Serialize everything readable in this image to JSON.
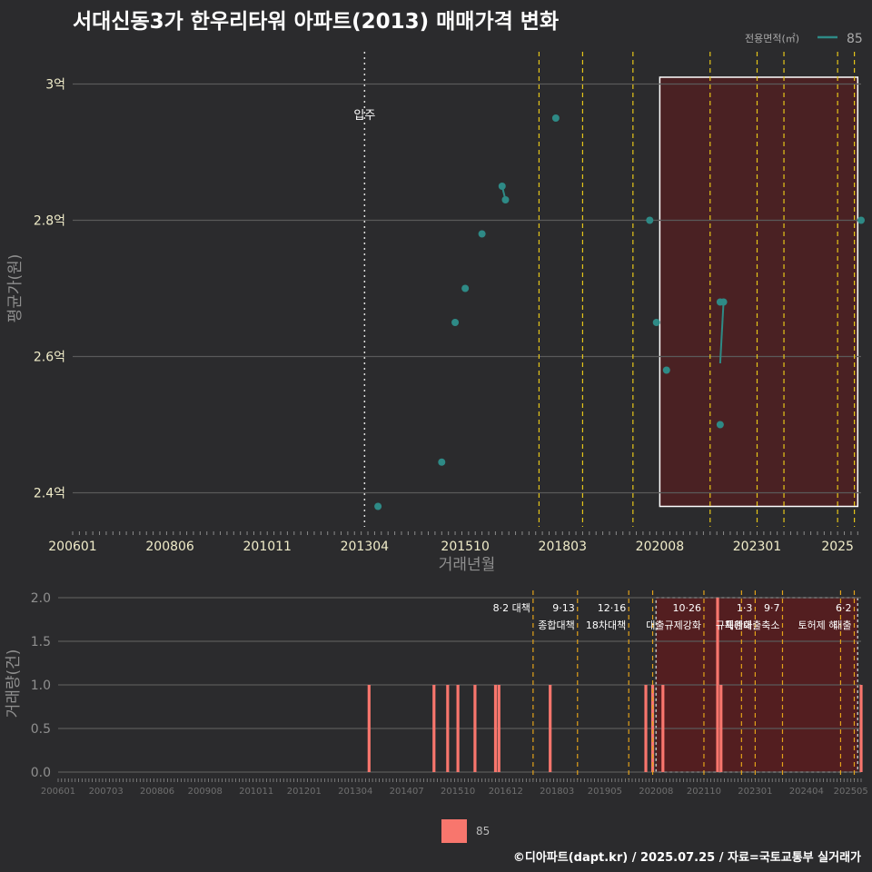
{
  "title": "서대신동3가 한우리타워 아파트(2013) 매매가격 변화",
  "footer": "©디아파트(dapt.kr) / 2025.07.25 / 자료=국토교통부 실거래가",
  "legend_top": {
    "title": "전용면적(㎡)",
    "label": "85"
  },
  "legend_bottom": {
    "label": "85"
  },
  "colors": {
    "series": "#2e8a86",
    "bar": "#f8766d",
    "policy": "#e6c619",
    "policy_bottom": "#e3a21a",
    "highlight": "#5a1c1f"
  },
  "chart_data": [
    {
      "type": "scatter",
      "title": "서대신동3가 한우리타워 아파트(2013) 매매가격 변화",
      "xlabel": "거래년월",
      "ylabel": "평균가(원)",
      "x_ticks": [
        "200601",
        "200806",
        "201011",
        "201304",
        "201510",
        "201803",
        "202008",
        "202301",
        "2025"
      ],
      "y_ticks": [
        {
          "v": 2.4,
          "label": "2.4억"
        },
        {
          "v": 2.6,
          "label": "2.6억"
        },
        {
          "v": 2.8,
          "label": "2.8억"
        },
        {
          "v": 3.0,
          "label": "3억"
        }
      ],
      "ylim": [
        2.35,
        3.05
      ],
      "xlim": [
        "2006-01",
        "2025-08"
      ],
      "annotation": {
        "x": "2013-04",
        "label": "입주"
      },
      "policy_lines": [
        "2017-08",
        "2018-09",
        "2019-12",
        "2021-11",
        "2023-01",
        "2023-09",
        "2025-01",
        "2025-06"
      ],
      "highlight_range": [
        "2020-08",
        "2025-07"
      ],
      "series": [
        {
          "name": "85",
          "points": [
            {
              "x": "2013-08",
              "y": 2.38
            },
            {
              "x": "2015-03",
              "y": 2.445
            },
            {
              "x": "2015-07",
              "y": 2.65
            },
            {
              "x": "2015-10",
              "y": 2.7
            },
            {
              "x": "2016-03",
              "y": 2.78
            },
            {
              "x": "2016-09",
              "y": 2.85
            },
            {
              "x": "2016-10",
              "y": 2.83
            },
            {
              "x": "2018-01",
              "y": 2.95
            },
            {
              "x": "2020-05",
              "y": 2.8
            },
            {
              "x": "2020-07",
              "y": 2.65
            },
            {
              "x": "2020-10",
              "y": 2.58
            },
            {
              "x": "2022-02",
              "y": 2.5
            },
            {
              "x": "2022-02",
              "y": 2.68
            },
            {
              "x": "2022-03",
              "y": 2.68
            },
            {
              "x": "2025-08",
              "y": 2.8
            }
          ],
          "line_segments": [
            [
              {
                "x": "2016-09",
                "y": 2.85
              },
              {
                "x": "2016-10",
                "y": 2.83
              }
            ],
            [
              {
                "x": "2022-02",
                "y": 2.59
              },
              {
                "x": "2022-03",
                "y": 2.68
              }
            ]
          ]
        }
      ]
    },
    {
      "type": "bar",
      "xlabel": "",
      "ylabel": "거래량(건)",
      "x_ticks": [
        "200601",
        "200703",
        "200806",
        "200908",
        "201011",
        "201201",
        "201304",
        "201407",
        "201510",
        "201612",
        "201803",
        "201905",
        "202008",
        "202110",
        "202301",
        "202404",
        "202505"
      ],
      "y_ticks": [
        {
          "v": 0,
          "label": "0.0"
        },
        {
          "v": 0.5,
          "label": "0.5"
        },
        {
          "v": 1,
          "label": "1.0"
        },
        {
          "v": 1.5,
          "label": "1.5"
        },
        {
          "v": 2,
          "label": "2.0"
        }
      ],
      "ylim": [
        0,
        2
      ],
      "xlim": [
        "2006-01",
        "2025-08"
      ],
      "highlight_range": [
        "2020-08",
        "2025-07"
      ],
      "policy_lines": [
        {
          "x": "2017-08",
          "label": "8·2 대책",
          "line2": ""
        },
        {
          "x": "2018-09",
          "label": "9·13",
          "line2": "종합대책"
        },
        {
          "x": "2019-12",
          "label": "12·16",
          "line2": "18차대책"
        },
        {
          "x": "2020-07",
          "label": "",
          "line2": ""
        },
        {
          "x": "2021-10",
          "label": "10·26",
          "line2": "대출규제강화"
        },
        {
          "x": "2022-09",
          "label": "",
          "line2": ""
        },
        {
          "x": "2023-01",
          "label": "1·3",
          "line2": "규제완화"
        },
        {
          "x": "2023-09",
          "label": "9·7",
          "line2": "특례대출축소"
        },
        {
          "x": "2025-02",
          "label": "",
          "line2": "토허제 해"
        },
        {
          "x": "2025-06",
          "label": "6·2",
          "line2": "대출"
        }
      ],
      "series": [
        {
          "name": "85",
          "points": [
            {
              "x": "2013-08",
              "y": 1
            },
            {
              "x": "2015-03",
              "y": 1
            },
            {
              "x": "2015-07",
              "y": 1
            },
            {
              "x": "2015-10",
              "y": 1
            },
            {
              "x": "2016-03",
              "y": 1
            },
            {
              "x": "2016-09",
              "y": 1
            },
            {
              "x": "2016-10",
              "y": 1
            },
            {
              "x": "2018-01",
              "y": 1
            },
            {
              "x": "2020-05",
              "y": 1
            },
            {
              "x": "2020-07",
              "y": 1
            },
            {
              "x": "2020-10",
              "y": 1
            },
            {
              "x": "2022-02",
              "y": 2
            },
            {
              "x": "2022-03",
              "y": 1
            },
            {
              "x": "2025-08",
              "y": 1
            }
          ]
        }
      ]
    }
  ]
}
